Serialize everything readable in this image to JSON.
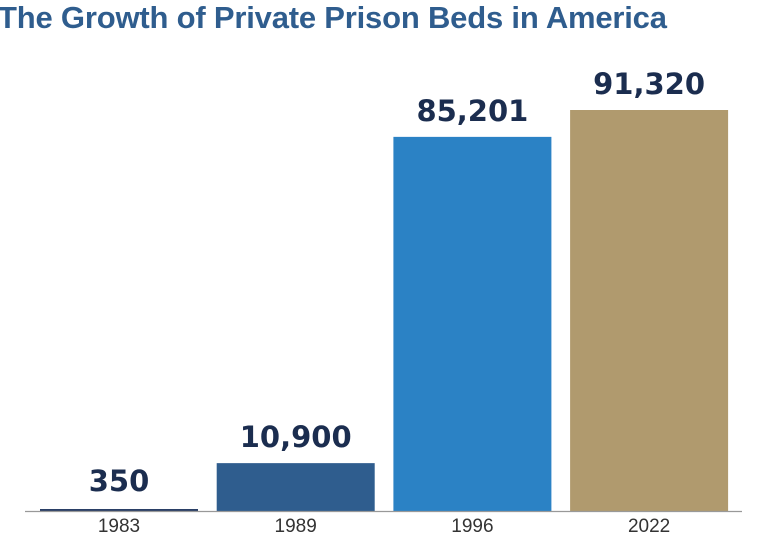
{
  "chart_data": {
    "type": "bar",
    "title": "The Growth of Private Prison Beds in America",
    "categories": [
      "1983",
      "1989",
      "1996",
      "2022"
    ],
    "values": [
      350,
      10900,
      85201,
      91320
    ],
    "data_labels": [
      "350",
      "10,900",
      "85,201",
      "91,320"
    ],
    "colors": [
      "#2a3f66",
      "#2f5d8e",
      "#2b82c5",
      "#b09a6e"
    ],
    "xlabel": "",
    "ylabel": "",
    "ylim": [
      0,
      91320
    ],
    "grid": false,
    "legend": "none"
  }
}
